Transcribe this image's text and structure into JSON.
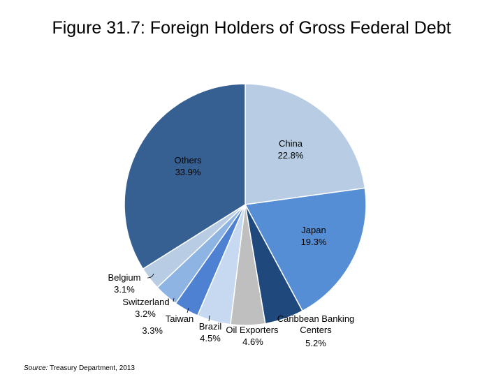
{
  "title": "Figure 31.7: Foreign Holders of Gross Federal Debt",
  "source": {
    "prefix": "Source:",
    "text": "Treasury Department, 2013"
  },
  "colors": {
    "china": "#b8cce4",
    "japan": "#558ed5",
    "caribbean": "#1f497d",
    "oil": "#bfbfbf",
    "brazil": "#c6d9f1",
    "taiwan": "#4f81d2",
    "switzerland": "#8eb4e3",
    "belgium": "#b8cce4",
    "others": "#376092"
  },
  "chart_data": {
    "type": "pie",
    "title": "Figure 31.7: Foreign Holders of Gross Federal Debt",
    "start": "12 o'clock, clockwise",
    "slices": [
      {
        "name": "China",
        "value": 22.8,
        "label": "China",
        "pct": "22.8%",
        "color_key": "china"
      },
      {
        "name": "Japan",
        "value": 19.3,
        "label": "Japan",
        "pct": "19.3%",
        "color_key": "japan"
      },
      {
        "name": "Caribbean Banking Centers",
        "value": 5.2,
        "label": "Caribbean Banking Centers",
        "pct": "5.2%",
        "color_key": "caribbean"
      },
      {
        "name": "Oil Exporters",
        "value": 4.6,
        "label": "Oil Exporters",
        "pct": "4.6%",
        "color_key": "oil"
      },
      {
        "name": "Brazil",
        "value": 4.5,
        "label": "Brazil",
        "pct": "4.5%",
        "color_key": "brazil"
      },
      {
        "name": "Taiwan",
        "value": 3.3,
        "label": "Taiwan",
        "pct": "3.3%",
        "color_key": "taiwan"
      },
      {
        "name": "Switzerland",
        "value": 3.2,
        "label": "Switzerland",
        "pct": "3.2%",
        "color_key": "switzerland"
      },
      {
        "name": "Belgium",
        "value": 3.1,
        "label": "Belgium",
        "pct": "3.1%",
        "color_key": "belgium"
      },
      {
        "name": "Others",
        "value": 33.9,
        "label": "Others",
        "pct": "33.9%",
        "color_key": "others"
      }
    ]
  }
}
